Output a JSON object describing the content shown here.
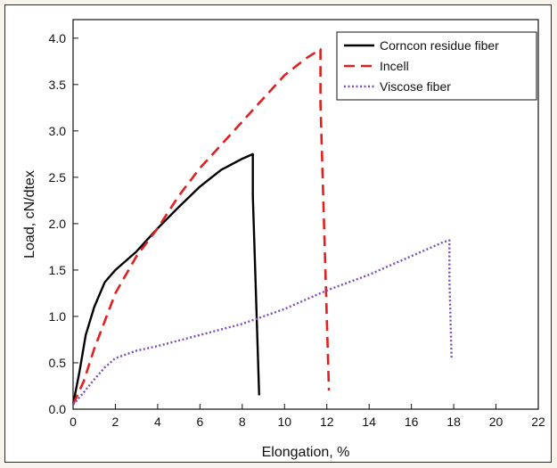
{
  "chart_data": {
    "type": "line",
    "title": "",
    "xlabel": "Elongation, %",
    "ylabel": "Load, cN/dtex",
    "xlim": [
      0,
      22
    ],
    "ylim": [
      0,
      4.2
    ],
    "x_ticks": [
      "0",
      "2",
      "4",
      "6",
      "8",
      "10",
      "12",
      "14",
      "16",
      "18",
      "20",
      "22"
    ],
    "y_ticks": [
      "0.0",
      "0.5",
      "1.0",
      "1.5",
      "2.0",
      "2.5",
      "3.0",
      "3.5",
      "4.0"
    ],
    "grid": false,
    "legend_position": "top-right",
    "series": [
      {
        "name": "Corncon residue fiber",
        "color": "#000000",
        "style": "solid",
        "x": [
          0,
          0.3,
          0.6,
          1.0,
          1.5,
          2.0,
          3.0,
          4.0,
          5.0,
          6.0,
          7.0,
          8.0,
          8.5,
          8.5,
          8.8
        ],
        "y": [
          0.05,
          0.4,
          0.8,
          1.1,
          1.37,
          1.5,
          1.7,
          1.95,
          2.18,
          2.4,
          2.58,
          2.7,
          2.75,
          2.3,
          0.15
        ]
      },
      {
        "name": "Incell",
        "color": "#e02020",
        "style": "dashed",
        "x": [
          0,
          0.5,
          1.0,
          1.5,
          2.0,
          3.0,
          4.0,
          5.0,
          6.0,
          7.0,
          8.0,
          9.0,
          10.0,
          11.0,
          11.7,
          11.7,
          12.1
        ],
        "y": [
          0.05,
          0.3,
          0.65,
          0.95,
          1.25,
          1.65,
          1.95,
          2.3,
          2.6,
          2.85,
          3.1,
          3.35,
          3.6,
          3.78,
          3.88,
          3.3,
          0.2
        ]
      },
      {
        "name": "Viscose fiber",
        "color": "#7a4fb8",
        "style": "dotted",
        "x": [
          0,
          0.5,
          1.0,
          1.5,
          2.0,
          3.0,
          4.0,
          6.0,
          8.0,
          10.0,
          12.0,
          14.0,
          16.0,
          17.5,
          17.8,
          17.8,
          17.9
        ],
        "y": [
          0.05,
          0.18,
          0.32,
          0.45,
          0.55,
          0.63,
          0.68,
          0.8,
          0.92,
          1.08,
          1.28,
          1.45,
          1.65,
          1.8,
          1.82,
          1.4,
          0.55
        ]
      }
    ]
  }
}
